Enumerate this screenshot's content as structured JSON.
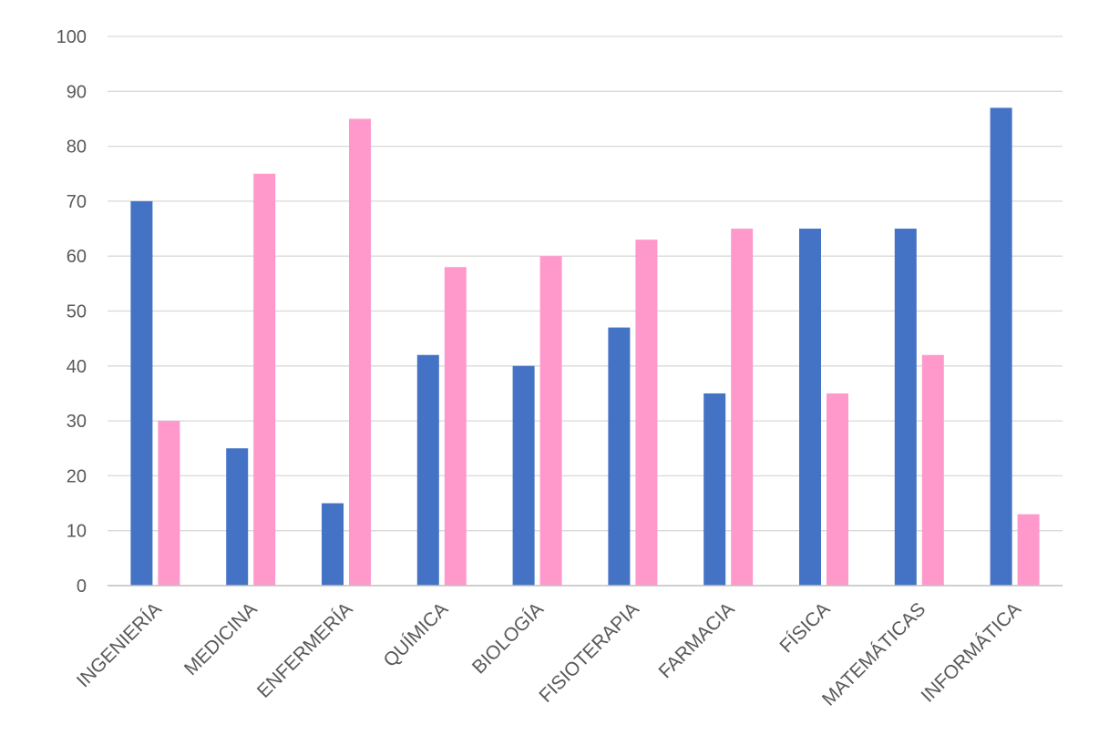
{
  "chart_data": {
    "type": "bar",
    "title": "",
    "xlabel": "",
    "ylabel": "",
    "ylim": [
      0,
      100
    ],
    "yticks": [
      0,
      10,
      20,
      30,
      40,
      50,
      60,
      70,
      80,
      90,
      100
    ],
    "grid": true,
    "legend": "none",
    "categories": [
      "INGENIERÍA",
      "MEDICINA",
      "ENFERMERÍA",
      "QUÍMICA",
      "BIOLOGÍA",
      "FISIOTERAPIA",
      "FARMACIA",
      "FÍSICA",
      "MATEMÁTICAS",
      "INFORMÁTICA"
    ],
    "series": [
      {
        "color": "#4472C4",
        "values": [
          70,
          25,
          15,
          42,
          40,
          47,
          35,
          65,
          65,
          87
        ]
      },
      {
        "color": "#FF99CC",
        "values": [
          30,
          75,
          85,
          58,
          60,
          63,
          65,
          35,
          42,
          13
        ]
      }
    ],
    "colors": {
      "grid": "#D9D9D9",
      "axis": "#BFBFBF",
      "text": "#595959"
    }
  }
}
